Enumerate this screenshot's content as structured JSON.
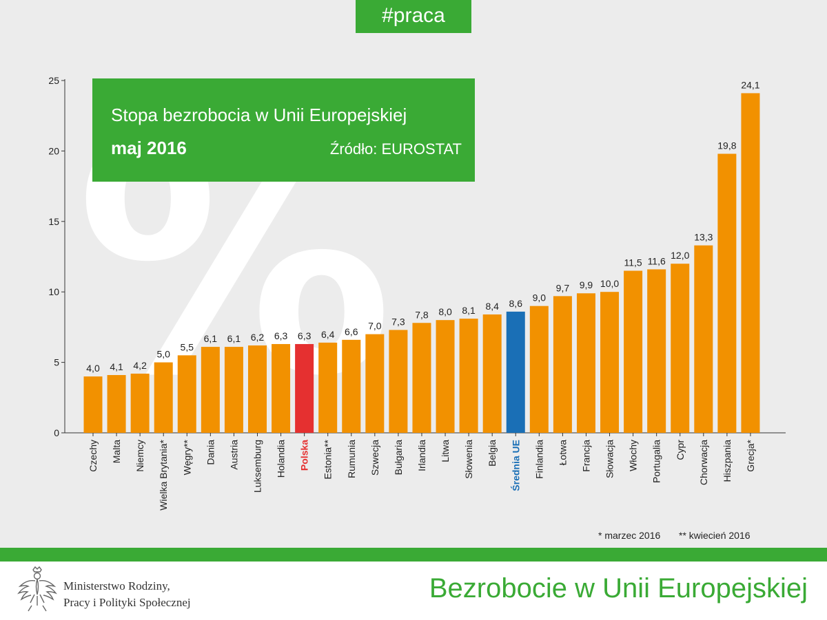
{
  "hashtag": "#praca",
  "title": "Stopa bezrobocia w Unii Europejskiej",
  "period": "maj 2016",
  "source": "Źródło: EUROSTAT",
  "watermark": "%",
  "footnotes": {
    "march": "* marzec 2016",
    "april": "** kwiecień 2016"
  },
  "ministry": {
    "line1": "Ministerstwo Rodziny,",
    "line2": "Pracy i Polityki Społecznej"
  },
  "footer_title": "Bezrobocie w Unii Europejskiej",
  "colors": {
    "default": "#f29100",
    "poland": "#e53030",
    "eu_average": "#1a6fb6",
    "green": "#3aaa35"
  },
  "chart_data": {
    "type": "bar",
    "ylim": [
      0,
      25
    ],
    "yticks": [
      0,
      5,
      10,
      15,
      20,
      25
    ],
    "bars": [
      {
        "name": "Czechy",
        "value": 4.0,
        "label": "4,0"
      },
      {
        "name": "Malta",
        "value": 4.1,
        "label": "4,1"
      },
      {
        "name": "Niemcy",
        "value": 4.2,
        "label": "4,2"
      },
      {
        "name": "Wielka Brytania*",
        "value": 5.0,
        "label": "5,0"
      },
      {
        "name": "Węgry**",
        "value": 5.5,
        "label": "5,5"
      },
      {
        "name": "Dania",
        "value": 6.1,
        "label": "6,1"
      },
      {
        "name": "Austria",
        "value": 6.1,
        "label": "6,1"
      },
      {
        "name": "Luksemburg",
        "value": 6.2,
        "label": "6,2"
      },
      {
        "name": "Holandia",
        "value": 6.3,
        "label": "6,3"
      },
      {
        "name": "Polska",
        "value": 6.3,
        "label": "6,3",
        "highlight": "poland"
      },
      {
        "name": "Estonia**",
        "value": 6.4,
        "label": "6,4"
      },
      {
        "name": "Rumunia",
        "value": 6.6,
        "label": "6,6"
      },
      {
        "name": "Szwecja",
        "value": 7.0,
        "label": "7,0"
      },
      {
        "name": "Bułgaria",
        "value": 7.3,
        "label": "7,3"
      },
      {
        "name": "Irlandia",
        "value": 7.8,
        "label": "7,8"
      },
      {
        "name": "Litwa",
        "value": 8.0,
        "label": "8,0"
      },
      {
        "name": "Słowenia",
        "value": 8.1,
        "label": "8,1"
      },
      {
        "name": "Belgia",
        "value": 8.4,
        "label": "8,4"
      },
      {
        "name": "Średnia UE",
        "value": 8.6,
        "label": "8,6",
        "highlight": "eu_average"
      },
      {
        "name": "Finlandia",
        "value": 9.0,
        "label": "9,0"
      },
      {
        "name": "Łotwa",
        "value": 9.7,
        "label": "9,7"
      },
      {
        "name": "Francja",
        "value": 9.9,
        "label": "9,9"
      },
      {
        "name": "Słowacja",
        "value": 10.0,
        "label": "10,0"
      },
      {
        "name": "Włochy",
        "value": 11.5,
        "label": "11,5"
      },
      {
        "name": "Portugalia",
        "value": 11.6,
        "label": "11,6"
      },
      {
        "name": "Cypr",
        "value": 12.0,
        "label": "12,0"
      },
      {
        "name": "Chorwacja",
        "value": 13.3,
        "label": "13,3"
      },
      {
        "name": "Hiszpania",
        "value": 19.8,
        "label": "19,8"
      },
      {
        "name": "Grecja*",
        "value": 24.1,
        "label": "24,1"
      }
    ]
  }
}
